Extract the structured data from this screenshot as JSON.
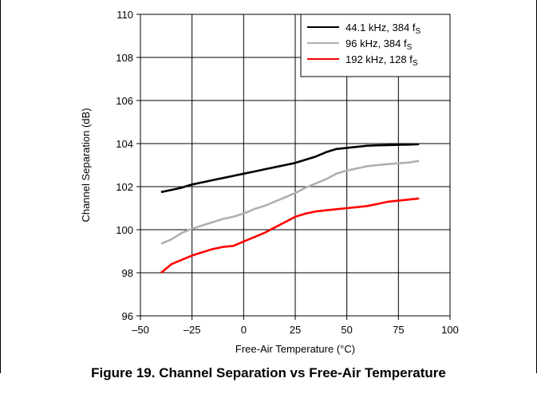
{
  "caption": "Figure 19. Channel Separation vs Free-Air Temperature",
  "chart_data": {
    "type": "line",
    "xlabel": "Free-Air Temperature (°C)",
    "ylabel": "Channel Separation (dB)",
    "xlim": [
      -50,
      100
    ],
    "ylim": [
      96,
      110
    ],
    "xticks": [
      -50,
      -25,
      0,
      25,
      50,
      75,
      100
    ],
    "xtick_labels": [
      "–50",
      "–25",
      "0",
      "25",
      "50",
      "75",
      "100"
    ],
    "yticks": [
      96,
      98,
      100,
      102,
      104,
      106,
      108,
      110
    ],
    "ytick_labels": [
      "96",
      "98",
      "100",
      "102",
      "104",
      "106",
      "108",
      "110"
    ],
    "grid": true,
    "legend_position": "top-right",
    "series": [
      {
        "name": "44.1 kHz, 384 f",
        "name_sub": "S",
        "color": "#000000",
        "x": [
          -40,
          -35,
          -30,
          -25,
          -20,
          -15,
          -10,
          -5,
          0,
          5,
          10,
          15,
          20,
          25,
          30,
          35,
          40,
          45,
          50,
          55,
          60,
          65,
          70,
          75,
          80,
          85
        ],
        "y": [
          101.75,
          101.85,
          101.95,
          102.1,
          102.2,
          102.3,
          102.4,
          102.5,
          102.6,
          102.7,
          102.8,
          102.9,
          103.0,
          103.1,
          103.25,
          103.4,
          103.6,
          103.75,
          103.8,
          103.85,
          103.9,
          103.92,
          103.93,
          103.94,
          103.95,
          103.97
        ]
      },
      {
        "name": "96  kHz, 384 f",
        "name_sub": "S",
        "color": "#b0b0b0",
        "x": [
          -40,
          -35,
          -30,
          -25,
          -20,
          -15,
          -10,
          -5,
          0,
          5,
          10,
          15,
          20,
          25,
          30,
          35,
          40,
          45,
          50,
          55,
          60,
          65,
          70,
          75,
          80,
          85
        ],
        "y": [
          99.35,
          99.55,
          99.85,
          100.05,
          100.2,
          100.35,
          100.5,
          100.6,
          100.75,
          100.95,
          101.1,
          101.3,
          101.5,
          101.7,
          101.95,
          102.15,
          102.35,
          102.6,
          102.75,
          102.85,
          102.95,
          103.0,
          103.05,
          103.08,
          103.12,
          103.2
        ]
      },
      {
        "name": "192 kHz, 128 f",
        "name_sub": "S",
        "color": "#ff0000",
        "x": [
          -40,
          -35,
          -30,
          -25,
          -20,
          -15,
          -10,
          -5,
          0,
          5,
          10,
          15,
          20,
          25,
          30,
          35,
          40,
          45,
          50,
          55,
          60,
          65,
          70,
          75,
          80,
          85
        ],
        "y": [
          98.0,
          98.4,
          98.6,
          98.8,
          98.95,
          99.1,
          99.2,
          99.25,
          99.45,
          99.65,
          99.85,
          100.1,
          100.35,
          100.6,
          100.75,
          100.85,
          100.9,
          100.95,
          101.0,
          101.05,
          101.1,
          101.2,
          101.3,
          101.35,
          101.4,
          101.45
        ]
      }
    ]
  }
}
